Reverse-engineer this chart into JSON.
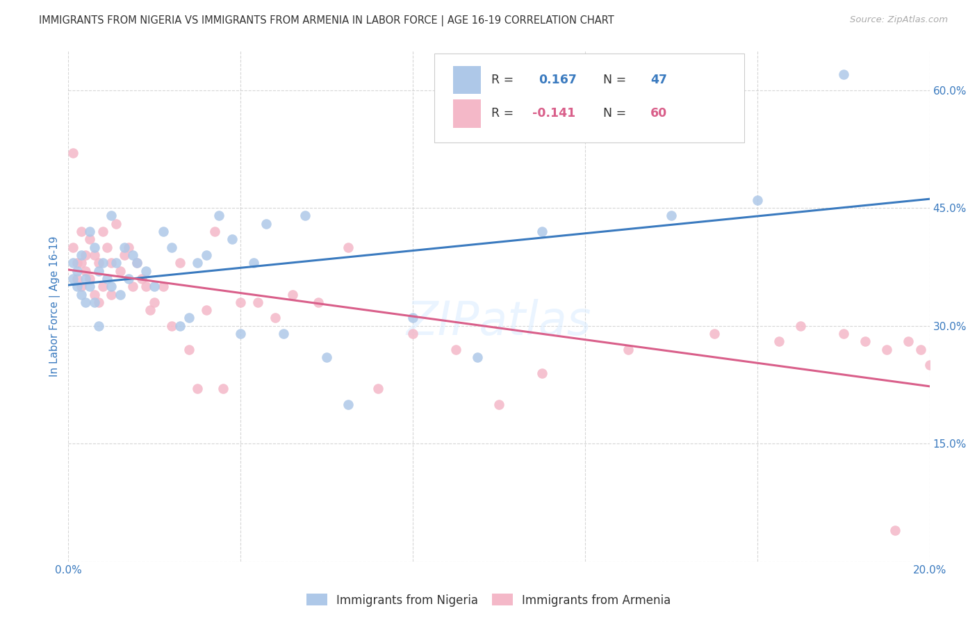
{
  "title": "IMMIGRANTS FROM NIGERIA VS IMMIGRANTS FROM ARMENIA IN LABOR FORCE | AGE 16-19 CORRELATION CHART",
  "source": "Source: ZipAtlas.com",
  "ylabel": "In Labor Force | Age 16-19",
  "xlim": [
    0.0,
    0.2
  ],
  "ylim": [
    0.0,
    0.65
  ],
  "xticks": [
    0.0,
    0.04,
    0.08,
    0.12,
    0.16,
    0.2
  ],
  "yticks": [
    0.0,
    0.15,
    0.3,
    0.45,
    0.6
  ],
  "legend_label1": "Immigrants from Nigeria",
  "legend_label2": "Immigrants from Armenia",
  "blue_scatter_color": "#aec8e8",
  "pink_scatter_color": "#f4b8c8",
  "blue_line_color": "#3a7abf",
  "pink_line_color": "#d95f8a",
  "axis_label_color": "#3a7abf",
  "tick_label_color": "#3a7abf",
  "title_color": "#333333",
  "source_color": "#aaaaaa",
  "background_color": "#ffffff",
  "grid_color": "#cccccc",
  "watermark_color": "#ddeeff",
  "nigeria_x": [
    0.001,
    0.001,
    0.002,
    0.002,
    0.003,
    0.003,
    0.004,
    0.004,
    0.005,
    0.005,
    0.006,
    0.006,
    0.007,
    0.007,
    0.008,
    0.009,
    0.01,
    0.01,
    0.011,
    0.012,
    0.013,
    0.014,
    0.015,
    0.016,
    0.018,
    0.02,
    0.022,
    0.024,
    0.026,
    0.028,
    0.03,
    0.032,
    0.035,
    0.038,
    0.04,
    0.043,
    0.046,
    0.05,
    0.055,
    0.06,
    0.065,
    0.08,
    0.095,
    0.11,
    0.14,
    0.16,
    0.18
  ],
  "nigeria_y": [
    0.38,
    0.36,
    0.37,
    0.35,
    0.39,
    0.34,
    0.36,
    0.33,
    0.42,
    0.35,
    0.4,
    0.33,
    0.37,
    0.3,
    0.38,
    0.36,
    0.44,
    0.35,
    0.38,
    0.34,
    0.4,
    0.36,
    0.39,
    0.38,
    0.37,
    0.35,
    0.42,
    0.4,
    0.3,
    0.31,
    0.38,
    0.39,
    0.44,
    0.41,
    0.29,
    0.38,
    0.43,
    0.29,
    0.44,
    0.26,
    0.2,
    0.31,
    0.26,
    0.42,
    0.44,
    0.46,
    0.62
  ],
  "armenia_x": [
    0.001,
    0.001,
    0.002,
    0.002,
    0.003,
    0.003,
    0.003,
    0.004,
    0.004,
    0.005,
    0.005,
    0.006,
    0.006,
    0.007,
    0.007,
    0.008,
    0.008,
    0.009,
    0.01,
    0.01,
    0.011,
    0.012,
    0.013,
    0.014,
    0.015,
    0.016,
    0.017,
    0.018,
    0.019,
    0.02,
    0.022,
    0.024,
    0.026,
    0.028,
    0.03,
    0.032,
    0.034,
    0.036,
    0.04,
    0.044,
    0.048,
    0.052,
    0.058,
    0.065,
    0.072,
    0.08,
    0.09,
    0.1,
    0.11,
    0.13,
    0.15,
    0.165,
    0.17,
    0.18,
    0.185,
    0.19,
    0.192,
    0.195,
    0.198,
    0.2
  ],
  "armenia_y": [
    0.52,
    0.4,
    0.38,
    0.36,
    0.42,
    0.38,
    0.35,
    0.39,
    0.37,
    0.41,
    0.36,
    0.39,
    0.34,
    0.38,
    0.33,
    0.42,
    0.35,
    0.4,
    0.38,
    0.34,
    0.43,
    0.37,
    0.39,
    0.4,
    0.35,
    0.38,
    0.36,
    0.35,
    0.32,
    0.33,
    0.35,
    0.3,
    0.38,
    0.27,
    0.22,
    0.32,
    0.42,
    0.22,
    0.33,
    0.33,
    0.31,
    0.34,
    0.33,
    0.4,
    0.22,
    0.29,
    0.27,
    0.2,
    0.24,
    0.27,
    0.29,
    0.28,
    0.3,
    0.29,
    0.28,
    0.27,
    0.04,
    0.28,
    0.27,
    0.25
  ]
}
